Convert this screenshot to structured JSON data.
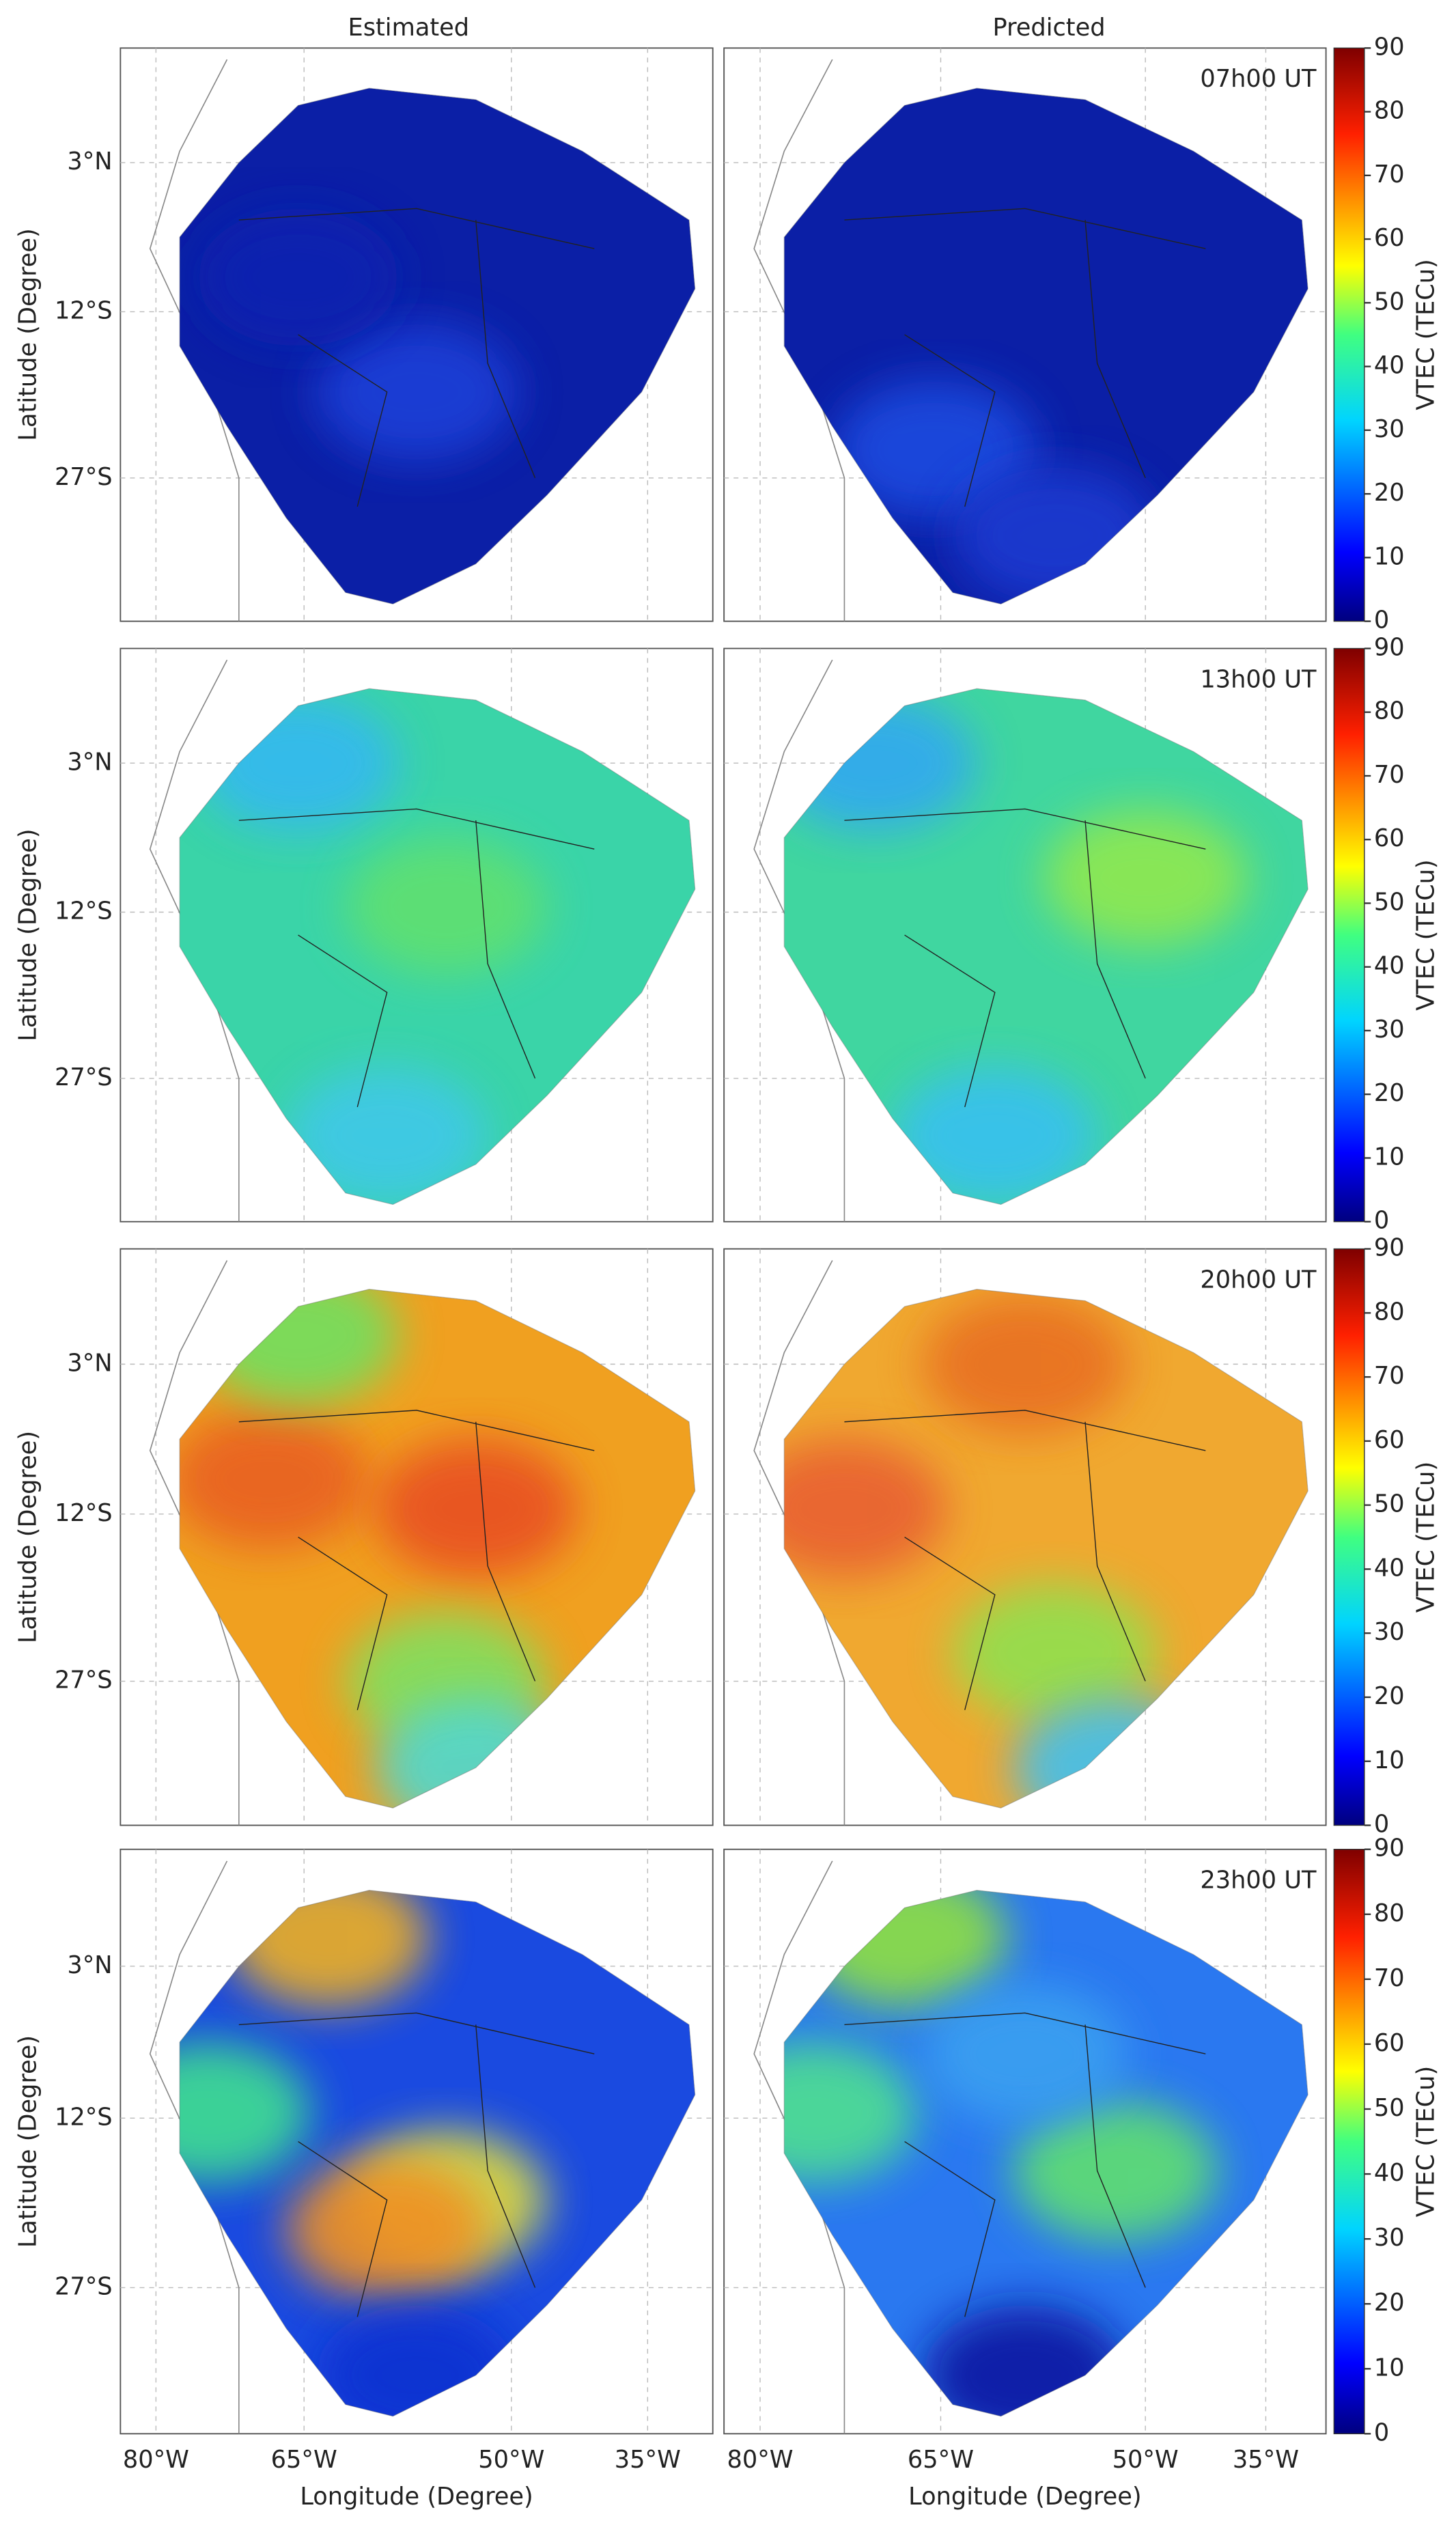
{
  "column_titles": [
    "Estimated",
    "Predicted"
  ],
  "rows": [
    {
      "time": "07h00 UT"
    },
    {
      "time": "13h00 UT"
    },
    {
      "time": "20h00 UT"
    },
    {
      "time": "23h00 UT"
    }
  ],
  "latitude_ticks": [
    "3°N",
    "12°S",
    "27°S"
  ],
  "longitude_ticks": [
    "80°W",
    "65°W",
    "50°W",
    "35°W"
  ],
  "y_axis_label": "Latitude (Degree)",
  "x_axis_label": "Longitude (Degree)",
  "colorbar": {
    "label": "VTEC (TECu)",
    "lim": [
      0,
      90
    ],
    "ticks": [
      0,
      10,
      20,
      30,
      40,
      50,
      60,
      70,
      80,
      90
    ]
  }
}
